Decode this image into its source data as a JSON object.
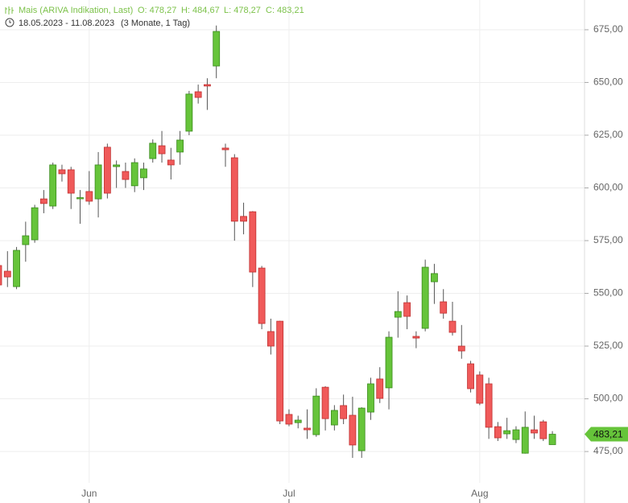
{
  "chart_data": {
    "type": "candlestick",
    "title": "Mais (ARIVA Indikation, Last)",
    "ohlc_labels": [
      "O: 478,27",
      "H: 484,67",
      "L: 478,27",
      "C: 483,21"
    ],
    "date_range": "18.05.2023 - 11.08.2023",
    "period": "(3 Monate, 1 Tag)",
    "last_value_label": "483,21",
    "up_color": "#66c43a",
    "down_color": "#f05a5a",
    "label_color": "#7cc24a",
    "grid": true,
    "categories": [
      null,
      null,
      null,
      null,
      null,
      null,
      null,
      null,
      null,
      null,
      "Jun",
      null,
      null,
      null,
      null,
      null,
      null,
      null,
      null,
      null,
      null,
      null,
      null,
      null,
      null,
      null,
      null,
      null,
      null,
      null,
      null,
      null,
      "Jul",
      null,
      null,
      null,
      null,
      null,
      null,
      null,
      null,
      null,
      null,
      null,
      null,
      null,
      null,
      null,
      null,
      null,
      null,
      null,
      null,
      "Aug",
      null,
      null,
      null,
      null,
      null,
      null,
      null,
      null
    ],
    "open": [
      563.2,
      560.5,
      553.2,
      573.1,
      575.4,
      594.8,
      591.4,
      608.6,
      608.6,
      595.2,
      598.3,
      594.8,
      619.3,
      610.1,
      607.8,
      601.0,
      604.8,
      613.9,
      620.0,
      613.2,
      617.0,
      626.9,
      645.6,
      649.0,
      657.8,
      618.9,
      614.3,
      586.5,
      588.7,
      562.0,
      531.9,
      536.8,
      492.6,
      488.7,
      486.1,
      483.0,
      505.5,
      487.6,
      496.8,
      492.2,
      475.4,
      493.7,
      509.4,
      505.2,
      538.7,
      545.6,
      529.6,
      533.4,
      555.5,
      546.0,
      536.8,
      525.0,
      516.6,
      511.3,
      507.1,
      486.8,
      483.4,
      480.7,
      474.2,
      485.3,
      489.1,
      478.27
    ],
    "high": [
      566,
      570,
      572,
      584,
      592,
      599,
      612,
      611,
      610,
      599,
      608,
      617,
      621,
      613,
      612,
      614,
      612,
      623,
      627,
      619,
      627,
      646,
      649,
      652,
      677,
      621,
      616,
      593,
      589,
      563,
      538,
      537,
      495,
      492,
      495,
      505,
      506,
      497,
      502,
      501,
      496,
      510,
      515,
      532,
      551,
      549,
      532,
      566,
      564,
      552,
      546,
      535,
      518,
      513,
      510,
      489,
      491,
      487,
      494,
      492,
      490,
      484.67
    ],
    "low": [
      551,
      553,
      552,
      565,
      574,
      588,
      590,
      603,
      590,
      583,
      592,
      586,
      595,
      600,
      600,
      598,
      599,
      612,
      612,
      604,
      611,
      625,
      640,
      637,
      652,
      610,
      575,
      578,
      553,
      533,
      521,
      488,
      487,
      486,
      481,
      482,
      485,
      485,
      488,
      472,
      472,
      490,
      498,
      495,
      529,
      533,
      524,
      532,
      545,
      538,
      530,
      519,
      503,
      497,
      481,
      480,
      481,
      479,
      474,
      481,
      480,
      478.27
    ],
    "close": [
      554.0,
      557.8,
      570.4,
      577.3,
      590.6,
      592.6,
      610.9,
      606.7,
      597.5,
      595.4,
      593.7,
      610.9,
      597.5,
      610.9,
      604.0,
      612.0,
      609.0,
      621.2,
      616.2,
      610.9,
      622.7,
      644.5,
      642.9,
      648.3,
      674.2,
      618.1,
      584.2,
      584.2,
      560.1,
      535.7,
      525.0,
      489.5,
      488.0,
      489.9,
      485.3,
      501.3,
      490.6,
      494.5,
      490.6,
      478.1,
      495.6,
      507.1,
      500.2,
      529.2,
      541.4,
      539.1,
      528.8,
      562.4,
      559.4,
      540.6,
      531.5,
      522.7,
      504.8,
      497.9,
      486.5,
      481.5,
      484.9,
      485.3,
      486.5,
      483.8,
      481.1,
      483.21
    ],
    "ylim": [
      450.6,
      689.1
    ],
    "yticks": [
      {
        "value": 475,
        "label": "475,00"
      },
      {
        "value": 500,
        "label": "500,00"
      },
      {
        "value": 525,
        "label": "525,00"
      },
      {
        "value": 550,
        "label": "550,00"
      },
      {
        "value": 575,
        "label": "575,00"
      },
      {
        "value": 600,
        "label": "600,00"
      },
      {
        "value": 625,
        "label": "625,00"
      },
      {
        "value": 650,
        "label": "650,00"
      },
      {
        "value": 675,
        "label": "675,00"
      }
    ]
  }
}
